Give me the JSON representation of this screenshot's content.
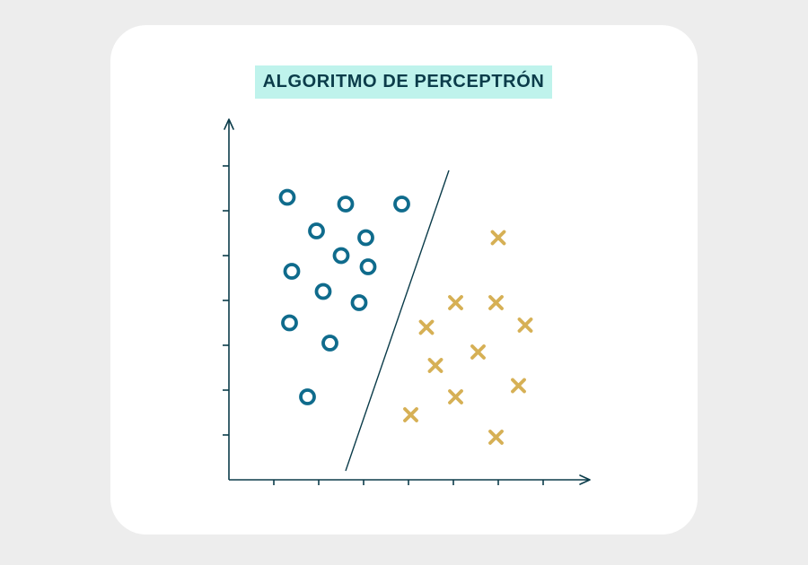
{
  "title": "ALGORITMO DE PERCEPTRÓN",
  "colors": {
    "background": "#ededed",
    "card": "#ffffff",
    "title_bg": "#bff3ec",
    "title_text": "#0b3c4a",
    "axis": "#0b3c4a",
    "class_circle": "#0f6b8c",
    "class_cross": "#d6b055",
    "boundary": "#0b3c4a"
  },
  "chart_data": {
    "type": "scatter",
    "title": "ALGORITMO DE PERCEPTRÓN",
    "xlabel": "",
    "ylabel": "",
    "xlim": [
      0,
      8
    ],
    "ylim": [
      0,
      8
    ],
    "x_ticks": [
      1,
      2,
      3,
      4,
      5,
      6,
      7
    ],
    "y_ticks": [
      1,
      2,
      3,
      4,
      5,
      6,
      7
    ],
    "grid": false,
    "legend": "none",
    "series": [
      {
        "marker": "circle",
        "points": [
          [
            1.3,
            6.3
          ],
          [
            2.6,
            6.15
          ],
          [
            3.85,
            6.15
          ],
          [
            1.95,
            5.55
          ],
          [
            3.05,
            5.4
          ],
          [
            2.5,
            5.0
          ],
          [
            3.1,
            4.75
          ],
          [
            1.4,
            4.65
          ],
          [
            2.1,
            4.2
          ],
          [
            2.9,
            3.95
          ],
          [
            1.35,
            3.5
          ],
          [
            2.25,
            3.05
          ],
          [
            1.75,
            1.85
          ]
        ]
      },
      {
        "marker": "cross",
        "points": [
          [
            6.0,
            5.4
          ],
          [
            5.05,
            3.95
          ],
          [
            5.95,
            3.95
          ],
          [
            4.4,
            3.4
          ],
          [
            6.6,
            3.45
          ],
          [
            5.55,
            2.85
          ],
          [
            4.6,
            2.55
          ],
          [
            6.45,
            2.1
          ],
          [
            5.05,
            1.85
          ],
          [
            4.05,
            1.45
          ],
          [
            5.95,
            0.95
          ]
        ]
      }
    ],
    "boundary_line": {
      "from": [
        2.6,
        0.2
      ],
      "to": [
        4.9,
        6.9
      ]
    }
  }
}
